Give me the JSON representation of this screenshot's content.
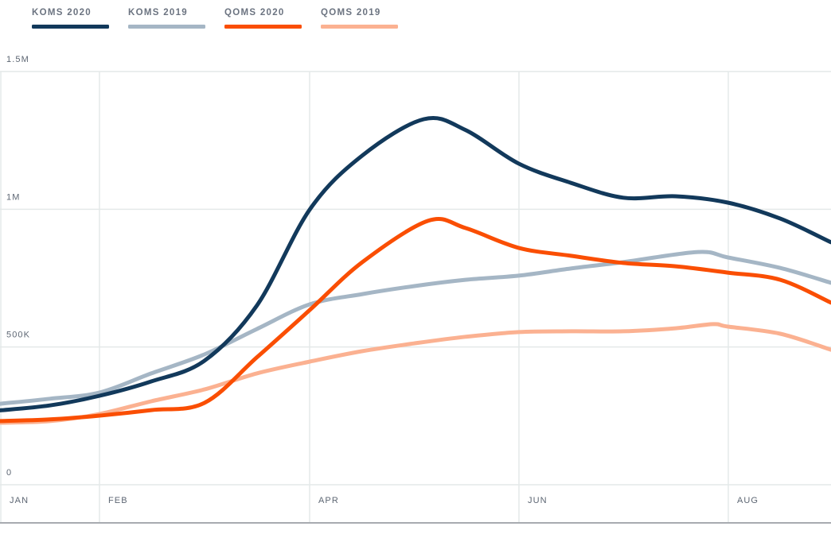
{
  "legend": {
    "items": [
      {
        "label": "KOMS 2020",
        "color": "#12395b"
      },
      {
        "label": "KOMS 2019",
        "color": "#a5b6c5"
      },
      {
        "label": "QOMS 2020",
        "color": "#fa4e03"
      },
      {
        "label": "QOMS 2019",
        "color": "#fbb191"
      }
    ]
  },
  "chart_data": {
    "type": "line",
    "title": "",
    "xlabel": "",
    "ylabel": "",
    "grid": true,
    "legend_position": "top-left",
    "colors": {
      "gridline": "#e4e9e9",
      "axis_border": "#a7abb0",
      "tick_text": "#5d6673"
    },
    "y_axis": {
      "min": 0,
      "max": 1500000,
      "ticks": [
        {
          "label": "0",
          "value": 0
        },
        {
          "label": "500K",
          "value": 500000
        },
        {
          "label": "1M",
          "value": 1000000
        },
        {
          "label": "1.5M",
          "value": 1500000
        }
      ]
    },
    "x_axis": {
      "ticks": [
        {
          "label": "JAN",
          "pct": 0.1
        },
        {
          "label": "FEB",
          "pct": 11.97
        },
        {
          "label": "APR",
          "pct": 37.26
        },
        {
          "label": "JUN",
          "pct": 62.45
        },
        {
          "label": "AUG",
          "pct": 87.64
        }
      ]
    },
    "series": [
      {
        "name": "KOMS 2020",
        "color": "#12395b",
        "points": [
          [
            0,
            270000
          ],
          [
            6,
            288000
          ],
          [
            12,
            323000
          ],
          [
            18.2,
            375000
          ],
          [
            24.6,
            450000
          ],
          [
            30.9,
            650000
          ],
          [
            37.3,
            1000000
          ],
          [
            43.6,
            1195000
          ],
          [
            51,
            1327000
          ],
          [
            56,
            1288000
          ],
          [
            62.4,
            1166000
          ],
          [
            68.7,
            1096000
          ],
          [
            75,
            1042000
          ],
          [
            81.3,
            1047000
          ],
          [
            87.6,
            1024000
          ],
          [
            93.9,
            966000
          ],
          [
            100,
            880000
          ]
        ]
      },
      {
        "name": "KOMS 2019",
        "color": "#a5b6c5",
        "points": [
          [
            0,
            294000
          ],
          [
            6,
            312000
          ],
          [
            12,
            335000
          ],
          [
            18.2,
            404000
          ],
          [
            24.6,
            473000
          ],
          [
            30.9,
            565000
          ],
          [
            37.3,
            655000
          ],
          [
            43.6,
            692000
          ],
          [
            49.8,
            721000
          ],
          [
            56,
            744000
          ],
          [
            62.4,
            759000
          ],
          [
            68.7,
            785000
          ],
          [
            75,
            808000
          ],
          [
            84,
            845000
          ],
          [
            87.6,
            825000
          ],
          [
            93.9,
            787000
          ],
          [
            100,
            733000
          ]
        ]
      },
      {
        "name": "QOMS 2020",
        "color": "#fa4e03",
        "points": [
          [
            0,
            231000
          ],
          [
            6,
            237000
          ],
          [
            12,
            251000
          ],
          [
            18.2,
            271000
          ],
          [
            24.6,
            297000
          ],
          [
            30.9,
            462000
          ],
          [
            37.3,
            635000
          ],
          [
            43.6,
            808000
          ],
          [
            51.5,
            958000
          ],
          [
            56,
            932000
          ],
          [
            62.4,
            860000
          ],
          [
            68.7,
            831000
          ],
          [
            75,
            805000
          ],
          [
            81.3,
            793000
          ],
          [
            87.6,
            770000
          ],
          [
            93.9,
            744000
          ],
          [
            100,
            661000
          ]
        ]
      },
      {
        "name": "QOMS 2019",
        "color": "#fbb191",
        "points": [
          [
            0,
            225000
          ],
          [
            6,
            231000
          ],
          [
            12,
            257000
          ],
          [
            18.2,
            303000
          ],
          [
            24.6,
            346000
          ],
          [
            30.9,
            404000
          ],
          [
            37.3,
            447000
          ],
          [
            43.6,
            485000
          ],
          [
            49.8,
            513000
          ],
          [
            56,
            537000
          ],
          [
            62.4,
            554000
          ],
          [
            68.7,
            557000
          ],
          [
            75,
            557000
          ],
          [
            81.3,
            568000
          ],
          [
            85.8,
            583000
          ],
          [
            87.6,
            574000
          ],
          [
            93.9,
            548000
          ],
          [
            100,
            490000
          ]
        ]
      }
    ]
  }
}
